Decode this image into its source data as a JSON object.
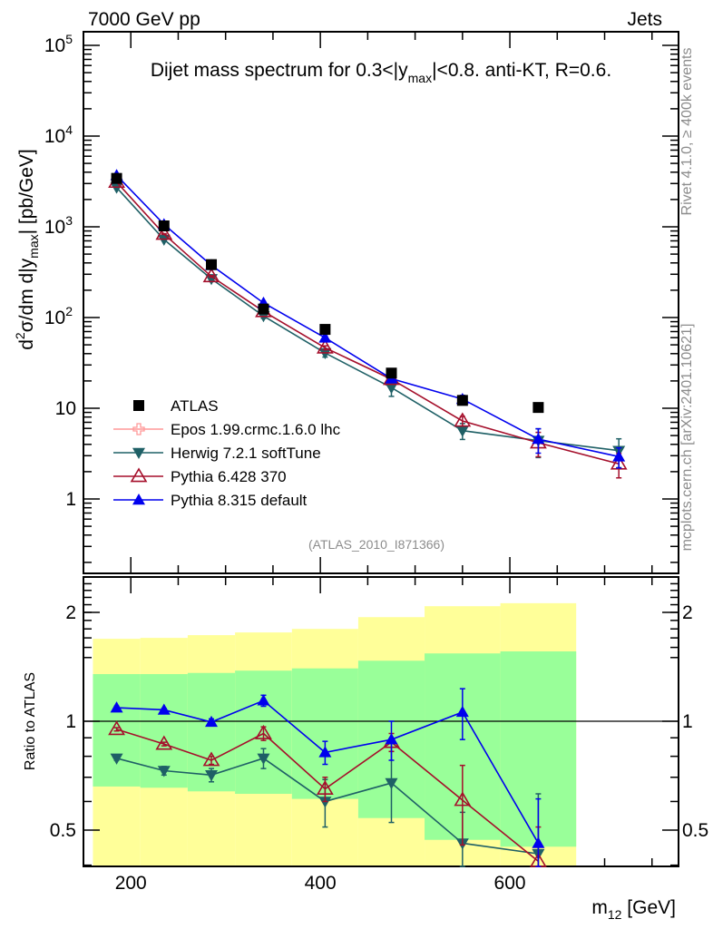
{
  "header": {
    "left": "7000 GeV pp",
    "right": "Jets"
  },
  "side": {
    "rivet": "Rivet 4.1.0, ≥ 400k events",
    "mcplots": "mcplots.cern.ch [arXiv:2401.10621]"
  },
  "analysis_tag": "(ATLAS_2010_I871366)",
  "chart_data": [
    {
      "type": "line",
      "title": "Dijet mass spectrum for 0.3<|y_max|<0.8.  anti-KT, R=0.6.",
      "title_parts": {
        "pre": "Dijet mass spectrum for 0.3<|y",
        "sub": "max",
        "post": "|<0.8.  anti-KT, R=0.6."
      },
      "ylabel": "d²σ/dm d|y_max| [pb/GeV]",
      "ylabel_parts": {
        "a": "d",
        "sup": "2",
        "b": "σ/dm d|y",
        "sub": "max",
        "c": "| [pb/GeV]"
      },
      "xlim": [
        150,
        778
      ],
      "yscale": "log",
      "ylim": [
        0.15,
        140000
      ],
      "ytick_labels": [
        {
          "v": 1,
          "base": "1",
          "exp": ""
        },
        {
          "v": 10,
          "base": "10",
          "exp": ""
        },
        {
          "v": 100,
          "base": "10",
          "exp": "2"
        },
        {
          "v": 1000,
          "base": "10",
          "exp": "3"
        },
        {
          "v": 10000,
          "base": "10",
          "exp": "4"
        },
        {
          "v": 100000,
          "base": "10",
          "exp": "5"
        }
      ],
      "legend_position": "bottom-left",
      "series": [
        {
          "name": "ATLAS",
          "color": "#000000",
          "marker": "square",
          "x": [
            185,
            235,
            285,
            340,
            405,
            475,
            550,
            630
          ],
          "y": [
            3415,
            1023,
            383,
            124,
            74,
            24.4,
            12.2,
            10.2
          ],
          "rel_err": [
            0.03,
            0.03,
            0.03,
            0.03,
            0.04,
            0.05,
            0.08,
            0.1
          ]
        },
        {
          "name": "Epos 1.99.crmc.1.6.0 lhc",
          "color": "#ff9999",
          "marker": "open-cross",
          "x": [],
          "y": [],
          "rel_err": []
        },
        {
          "name": "Herwig 7.2.1 softTune",
          "color": "#1f6066",
          "marker": "triangle-down",
          "x": [
            185,
            235,
            285,
            340,
            405,
            475,
            550,
            630,
            715
          ],
          "y": [
            2712,
            724,
            267,
            104,
            40.7,
            16.9,
            5.66,
            4.4,
            3.41
          ],
          "rel_err": [
            0.01,
            0.02,
            0.03,
            0.06,
            0.1,
            0.2,
            0.2,
            0.35,
            0.35
          ]
        },
        {
          "name": "Pythia 6.428 370",
          "color": "#a50f2b",
          "marker": "open-triangle-up",
          "x": [
            185,
            235,
            285,
            340,
            405,
            475,
            550,
            630,
            715
          ],
          "y": [
            3115,
            832,
            284,
            117,
            46.4,
            20.9,
            7.24,
            4.17,
            2.44
          ],
          "rel_err": [
            0.01,
            0.01,
            0.02,
            0.03,
            0.05,
            0.06,
            0.12,
            0.3,
            0.3
          ]
        },
        {
          "name": "Pythia 8.315 default",
          "color": "#0000ee",
          "marker": "triangle-up",
          "x": [
            185,
            235,
            285,
            340,
            405,
            475,
            550,
            630,
            715
          ],
          "y": [
            3690,
            1063,
            377,
            145,
            59.8,
            21.2,
            12.6,
            4.57,
            2.93
          ],
          "rel_err": [
            0.01,
            0.01,
            0.02,
            0.03,
            0.05,
            0.05,
            0.1,
            0.3,
            0.25
          ]
        }
      ]
    },
    {
      "type": "line",
      "ylabel": "Ratio to ATLAS",
      "xlabel": "m_12 [GeV]",
      "xlabel_parts": {
        "a": "m",
        "sub": "12",
        "b": " [GeV]"
      },
      "xlim": [
        150,
        778
      ],
      "xtick_labels": [
        "200",
        "400",
        "600"
      ],
      "xticks": [
        200,
        400,
        600
      ],
      "yscale": "log",
      "ylim": [
        0.4,
        2.5
      ],
      "ytick_labels": [
        "0.5",
        "1",
        "2"
      ],
      "yticks": [
        0.5,
        1,
        2
      ],
      "reference_line": 1,
      "bands": {
        "bin_edges": [
          160,
          210,
          260,
          310,
          370,
          440,
          510,
          590,
          670
        ],
        "yellow_upper": [
          1.69,
          1.7,
          1.73,
          1.76,
          1.8,
          1.94,
          2.08,
          2.12
        ],
        "yellow_lower": [
          0.3,
          0.3,
          0.3,
          0.3,
          0.3,
          0.3,
          0.3,
          0.3
        ],
        "green_upper": [
          1.35,
          1.35,
          1.36,
          1.38,
          1.4,
          1.47,
          1.54,
          1.56
        ],
        "green_lower": [
          0.66,
          0.655,
          0.64,
          0.63,
          0.61,
          0.54,
          0.47,
          0.45
        ],
        "yellow_color": "#ffff99",
        "green_color": "#99ff99"
      },
      "series": [
        {
          "name": "Herwig 7.2.1 softTune",
          "color": "#1f6066",
          "marker": "triangle-down",
          "x": [
            185,
            235,
            285,
            340,
            405,
            475,
            550,
            630
          ],
          "y": [
            0.79,
            0.73,
            0.71,
            0.79,
            0.6,
            0.675,
            0.46,
            0.43
          ],
          "err": [
            0.01,
            0.02,
            0.03,
            0.05,
            0.09,
            0.15,
            0.1,
            0.2
          ]
        },
        {
          "name": "Pythia 6.428 370",
          "color": "#a50f2b",
          "marker": "open-triangle-up",
          "x": [
            185,
            235,
            285,
            340,
            405,
            475,
            550,
            630
          ],
          "y": [
            0.95,
            0.865,
            0.78,
            0.925,
            0.65,
            0.875,
            0.605,
            0.41
          ],
          "err": [
            0.01,
            0.01,
            0.02,
            0.04,
            0.05,
            0.05,
            0.15,
            0.1
          ]
        },
        {
          "name": "Pythia 8.315 default",
          "color": "#0000ee",
          "marker": "triangle-up",
          "x": [
            185,
            235,
            285,
            340,
            405,
            475,
            550,
            630
          ],
          "y": [
            1.09,
            1.075,
            0.995,
            1.14,
            0.82,
            0.89,
            1.06,
            0.46
          ],
          "err": [
            0.01,
            0.01,
            0.02,
            0.04,
            0.06,
            0.11,
            0.17,
            0.15
          ]
        }
      ]
    }
  ]
}
